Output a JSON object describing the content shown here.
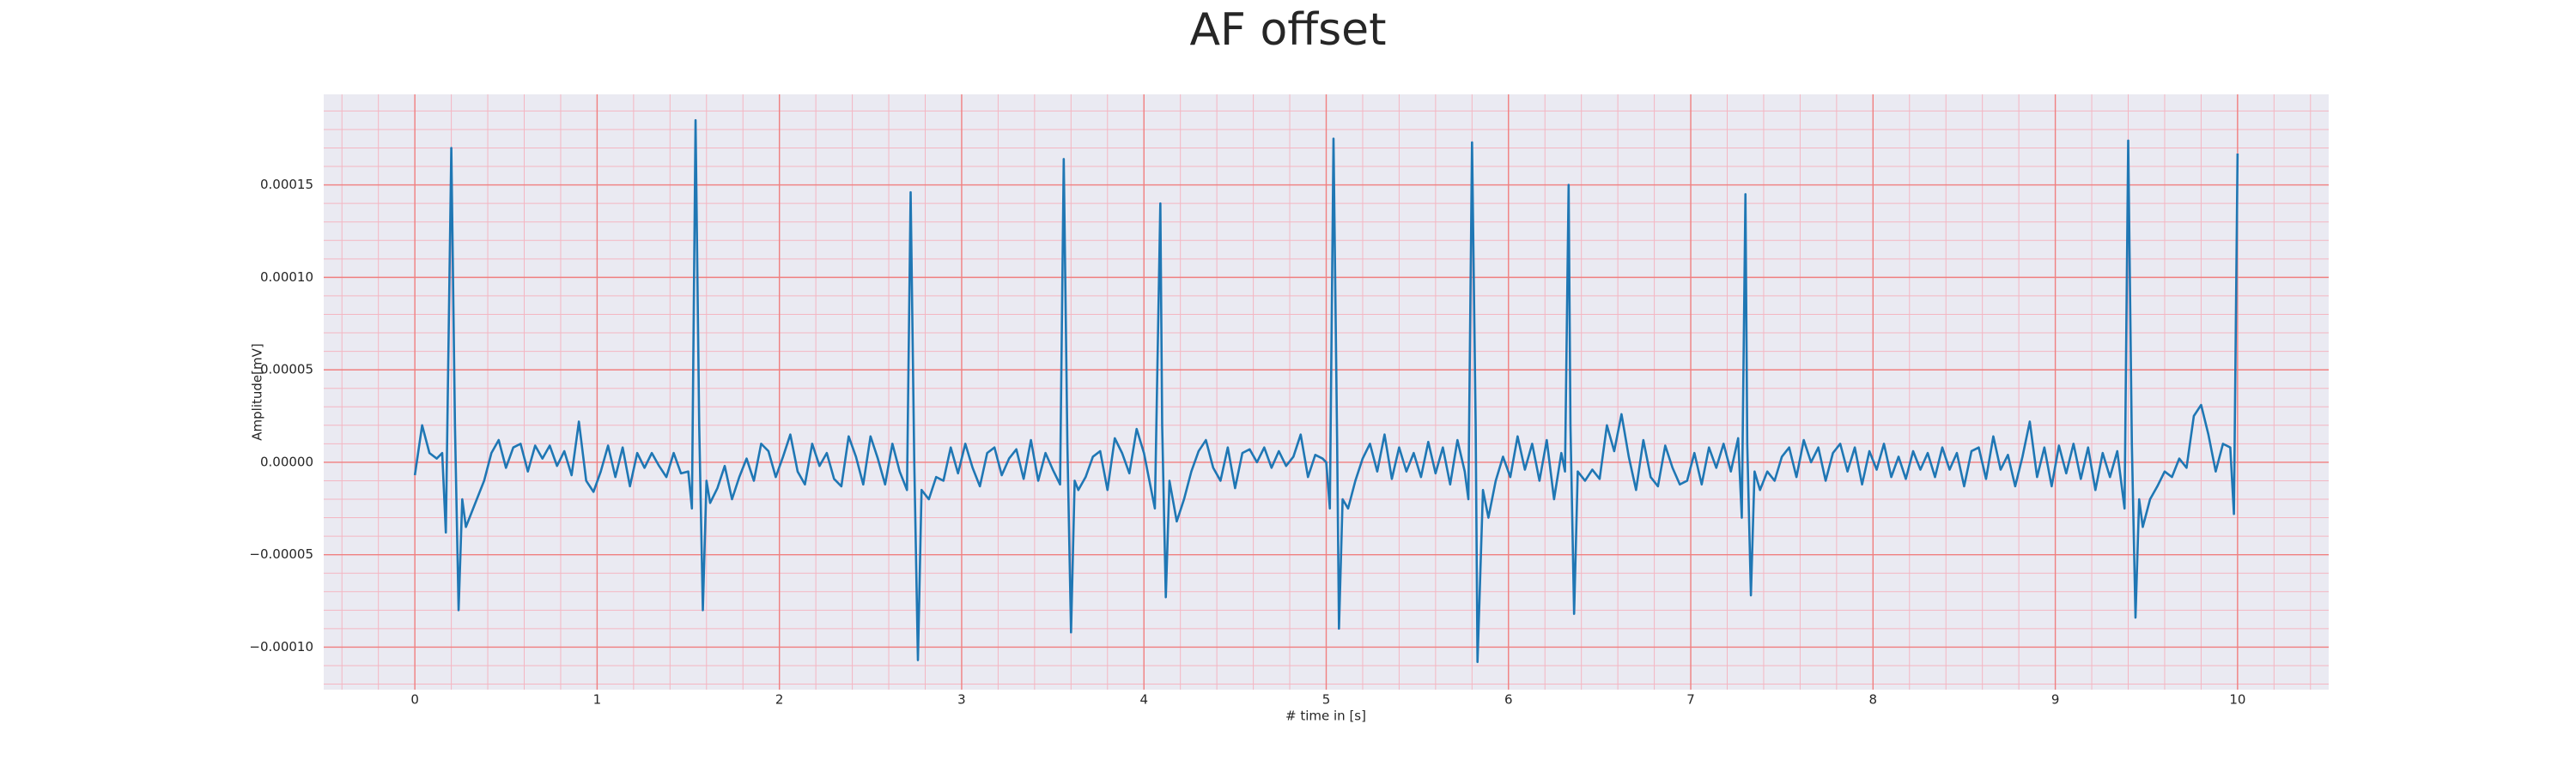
{
  "chart_data": {
    "type": "line",
    "title": "AF offset",
    "xlabel": "# time in [s]",
    "ylabel": "Amplitude[mV]",
    "color": "#1f77b4",
    "grid": true,
    "minor_grid": true,
    "xlim": [
      -0.5,
      10.5
    ],
    "xticks": [
      0,
      1,
      2,
      3,
      4,
      5,
      6,
      7,
      8,
      9,
      10
    ],
    "ylim": [
      -0.000123,
      0.000199
    ],
    "yticks": [
      {
        "value": -0.0001,
        "label": "−0.00010"
      },
      {
        "value": -5e-05,
        "label": "−0.00005"
      },
      {
        "value": 0,
        "label": "0.00000"
      },
      {
        "value": 5e-05,
        "label": "0.00005"
      },
      {
        "value": 0.0001,
        "label": "0.00010"
      },
      {
        "value": 0.00015,
        "label": "0.00015"
      }
    ],
    "x": [
      0,
      0.04,
      0.08,
      0.12,
      0.15,
      0.17,
      0.2,
      0.22,
      0.24,
      0.26,
      0.28,
      0.32,
      0.38,
      0.42,
      0.46,
      0.5,
      0.54,
      0.58,
      0.62,
      0.66,
      0.7,
      0.74,
      0.78,
      0.82,
      0.86,
      0.9,
      0.94,
      0.98,
      1.02,
      1.06,
      1.1,
      1.14,
      1.18,
      1.22,
      1.26,
      1.3,
      1.34,
      1.38,
      1.42,
      1.46,
      1.5,
      1.52,
      1.54,
      1.56,
      1.58,
      1.6,
      1.62,
      1.66,
      1.7,
      1.74,
      1.78,
      1.82,
      1.86,
      1.9,
      1.94,
      1.98,
      2.02,
      2.06,
      2.1,
      2.14,
      2.18,
      2.22,
      2.26,
      2.3,
      2.34,
      2.38,
      2.42,
      2.46,
      2.5,
      2.54,
      2.58,
      2.62,
      2.66,
      2.7,
      2.72,
      2.74,
      2.76,
      2.78,
      2.82,
      2.86,
      2.9,
      2.94,
      2.98,
      3.02,
      3.06,
      3.1,
      3.14,
      3.18,
      3.22,
      3.26,
      3.3,
      3.34,
      3.38,
      3.42,
      3.46,
      3.5,
      3.54,
      3.56,
      3.58,
      3.6,
      3.62,
      3.64,
      3.68,
      3.72,
      3.76,
      3.8,
      3.84,
      3.88,
      3.92,
      3.96,
      4.0,
      4.04,
      4.06,
      4.09,
      4.1,
      4.12,
      4.14,
      4.18,
      4.22,
      4.26,
      4.3,
      4.34,
      4.38,
      4.42,
      4.46,
      4.5,
      4.54,
      4.58,
      4.62,
      4.66,
      4.7,
      4.74,
      4.78,
      4.82,
      4.86,
      4.9,
      4.94,
      4.98,
      5.0,
      5.02,
      5.04,
      5.06,
      5.07,
      5.09,
      5.12,
      5.16,
      5.2,
      5.24,
      5.28,
      5.32,
      5.36,
      5.4,
      5.44,
      5.48,
      5.52,
      5.56,
      5.6,
      5.64,
      5.68,
      5.72,
      5.76,
      5.78,
      5.8,
      5.82,
      5.83,
      5.86,
      5.89,
      5.93,
      5.97,
      6.01,
      6.05,
      6.09,
      6.13,
      6.17,
      6.21,
      6.25,
      6.29,
      6.31,
      6.33,
      6.34,
      6.36,
      6.38,
      6.42,
      6.46,
      6.5,
      6.54,
      6.58,
      6.62,
      6.66,
      6.7,
      6.74,
      6.78,
      6.82,
      6.86,
      6.9,
      6.94,
      6.98,
      7.02,
      7.06,
      7.1,
      7.14,
      7.18,
      7.22,
      7.26,
      7.28,
      7.3,
      7.31,
      7.33,
      7.35,
      7.38,
      7.42,
      7.46,
      7.5,
      7.54,
      7.58,
      7.62,
      7.66,
      7.7,
      7.74,
      7.78,
      7.82,
      7.86,
      7.9,
      7.94,
      7.98,
      8.02,
      8.06,
      8.1,
      8.14,
      8.18,
      8.22,
      8.26,
      8.3,
      8.34,
      8.38,
      8.42,
      8.46,
      8.5,
      8.54,
      8.58,
      8.62,
      8.66,
      8.7,
      8.74,
      8.78,
      8.82,
      8.86,
      8.9,
      8.94,
      8.98,
      9.02,
      9.06,
      9.1,
      9.14,
      9.18,
      9.22,
      9.26,
      9.3,
      9.34,
      9.38,
      9.4,
      9.42,
      9.44,
      9.46,
      9.48,
      9.52,
      9.56,
      9.6,
      9.64,
      9.68,
      9.72,
      9.76,
      9.8,
      9.84,
      9.88,
      9.92,
      9.96,
      9.98,
      10.0
    ],
    "values": [
      -7e-06,
      2e-05,
      5e-06,
      2e-06,
      5e-06,
      -3.8e-05,
      0.00017,
      2e-05,
      -8e-05,
      -2e-05,
      -3.5e-05,
      -2.5e-05,
      -1e-05,
      5e-06,
      1.2e-05,
      -3e-06,
      8e-06,
      1e-05,
      -5e-06,
      9e-06,
      2e-06,
      9e-06,
      -2e-06,
      6e-06,
      -7e-06,
      2.2e-05,
      -1e-05,
      -1.6e-05,
      -5e-06,
      9e-06,
      -8e-06,
      8e-06,
      -1.3e-05,
      5e-06,
      -3e-06,
      5e-06,
      -2e-06,
      -8e-06,
      5e-06,
      -6e-06,
      -5e-06,
      -2.5e-05,
      0.000185,
      2e-05,
      -8e-05,
      -1e-05,
      -2.2e-05,
      -1.4e-05,
      -2e-06,
      -2e-05,
      -8e-06,
      2e-06,
      -1e-05,
      1e-05,
      6e-06,
      -8e-06,
      3e-06,
      1.5e-05,
      -5e-06,
      -1.2e-05,
      1e-05,
      -2e-06,
      5e-06,
      -9e-06,
      -1.3e-05,
      1.4e-05,
      3e-06,
      -1.2e-05,
      1.4e-05,
      2e-06,
      -1.2e-05,
      1e-05,
      -5e-06,
      -1.5e-05,
      0.000146,
      0,
      -0.000107,
      -1.5e-05,
      -2e-05,
      -8e-06,
      -1e-05,
      8e-06,
      -6e-06,
      1e-05,
      -3e-06,
      -1.3e-05,
      5e-06,
      8e-06,
      -7e-06,
      2e-06,
      7e-06,
      -9e-06,
      1.2e-05,
      -1e-05,
      5e-06,
      -4e-06,
      -1.2e-05,
      0.000164,
      1e-05,
      -9.2e-05,
      -1e-05,
      -1.5e-05,
      -8e-06,
      3e-06,
      6e-06,
      -1.5e-05,
      1.3e-05,
      5e-06,
      -6e-06,
      1.8e-05,
      5e-06,
      -1.5e-05,
      -2.5e-05,
      0.00014,
      2e-05,
      -7.3e-05,
      -1e-05,
      -3.2e-05,
      -2e-05,
      -5e-06,
      6e-06,
      1.2e-05,
      -3e-06,
      -1e-05,
      8e-06,
      -1.4e-05,
      5e-06,
      7e-06,
      0,
      8e-06,
      -3e-06,
      6e-06,
      -2e-06,
      3e-06,
      1.5e-05,
      -8e-06,
      4e-06,
      2e-06,
      0,
      -2.5e-05,
      0.000175,
      1e-05,
      -9e-05,
      -2e-05,
      -2.5e-05,
      -1e-05,
      2e-06,
      1e-05,
      -5e-06,
      1.5e-05,
      -9e-06,
      8e-06,
      -5e-06,
      5e-06,
      -8e-06,
      1.1e-05,
      -6e-06,
      8e-06,
      -1.2e-05,
      1.2e-05,
      -5e-06,
      -2e-05,
      0.000173,
      2e-05,
      -0.000108,
      -1.5e-05,
      -3e-05,
      -1e-05,
      3e-06,
      -8e-06,
      1.4e-05,
      -4e-06,
      1e-05,
      -1e-05,
      1.2e-05,
      -2e-05,
      5e-06,
      -5e-06,
      0.00015,
      2e-05,
      -8.2e-05,
      -5e-06,
      -1e-05,
      -4e-06,
      -9e-06,
      2e-05,
      6e-06,
      2.6e-05,
      3e-06,
      -1.5e-05,
      1.2e-05,
      -8e-06,
      -1.3e-05,
      9e-06,
      -3e-06,
      -1.2e-05,
      -1e-05,
      5e-06,
      -1.2e-05,
      8e-06,
      -3e-06,
      1e-05,
      -5e-06,
      1.3e-05,
      -3e-05,
      0.000145,
      1e-05,
      -7.2e-05,
      -5e-06,
      -1.5e-05,
      -5e-06,
      -1e-05,
      3e-06,
      8e-06,
      -8e-06,
      1.2e-05,
      0,
      8e-06,
      -1e-05,
      5e-06,
      1e-05,
      -5e-06,
      8e-06,
      -1.2e-05,
      6e-06,
      -4e-06,
      1e-05,
      -8e-06,
      3e-06,
      -9e-06,
      6e-06,
      -4e-06,
      5e-06,
      -8e-06,
      8e-06,
      -4e-06,
      5e-06,
      -1.3e-05,
      6e-06,
      8e-06,
      -9e-06,
      1.4e-05,
      -4e-06,
      4e-06,
      -1.3e-05,
      3e-06,
      2.2e-05,
      -8e-06,
      8e-06,
      -1.3e-05,
      9e-06,
      -6e-06,
      1e-05,
      -9e-06,
      8e-06,
      -1.5e-05,
      5e-06,
      -8e-06,
      6e-06,
      -2.5e-05,
      0.000174,
      1e-05,
      -8.4e-05,
      -2e-05,
      -3.5e-05,
      -2e-05,
      -1.3e-05,
      -5e-06,
      -8e-06,
      2e-06,
      -3e-06,
      2.5e-05,
      3.1e-05,
      1.5e-05,
      -5e-06,
      1e-05,
      8e-06,
      -2.8e-05,
      0.000167
    ]
  }
}
